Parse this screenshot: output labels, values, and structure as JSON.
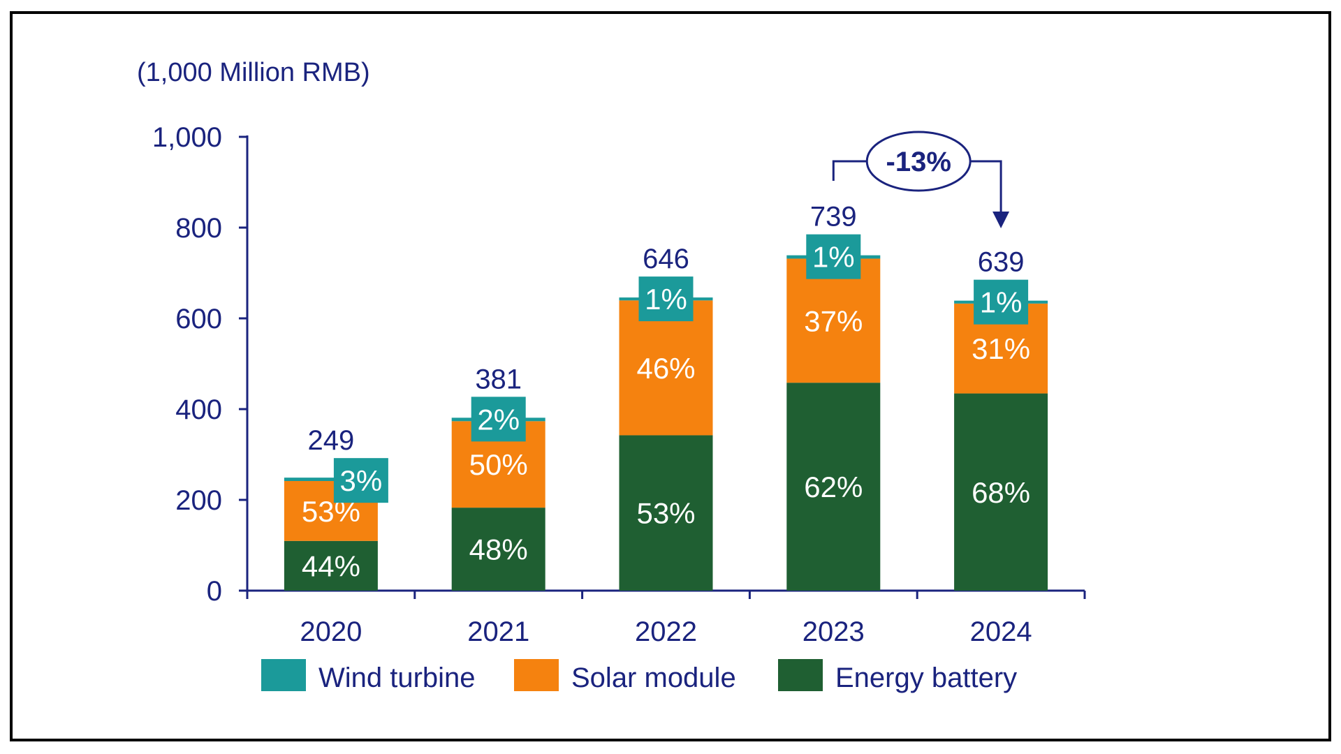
{
  "chart_data": {
    "type": "bar",
    "stacked": true,
    "unit_label": "(1,000 Million RMB)",
    "categories": [
      "2020",
      "2021",
      "2022",
      "2023",
      "2024"
    ],
    "totals": [
      249,
      381,
      646,
      739,
      639
    ],
    "ylim": [
      0,
      1000
    ],
    "yticks": [
      0,
      200,
      400,
      600,
      800,
      1000
    ],
    "ytick_labels": [
      "0",
      "200",
      "400",
      "600",
      "800",
      "1,000"
    ],
    "grid": false,
    "legend_position": "bottom",
    "series": [
      {
        "name": "Energy battery",
        "color": "#1F5F32",
        "share_pct": [
          44,
          48,
          53,
          62,
          68
        ],
        "labels": [
          "44%",
          "48%",
          "53%",
          "62%",
          "68%"
        ]
      },
      {
        "name": "Solar module",
        "color": "#F5820F",
        "share_pct": [
          53,
          50,
          46,
          37,
          31
        ],
        "labels": [
          "53%",
          "50%",
          "46%",
          "37%",
          "31%"
        ]
      },
      {
        "name": "Wind turbine",
        "color": "#1B9A9A",
        "share_pct": [
          3,
          2,
          1,
          1,
          1
        ],
        "labels": [
          "3%",
          "2%",
          "1%",
          "1%",
          "1%"
        ]
      }
    ],
    "legend_order": [
      "Wind turbine",
      "Solar module",
      "Energy battery"
    ],
    "annotation": {
      "from": "2023",
      "to": "2024",
      "label": "-13%"
    },
    "axis_color": "#1A237E"
  }
}
